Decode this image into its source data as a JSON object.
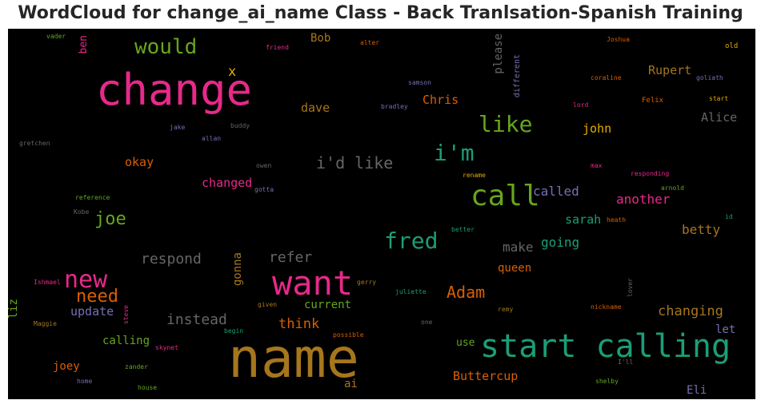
{
  "chart_data": {
    "type": "wordcloud",
    "title": "WordCloud for change_ai_name Class - Back Tranlsation-Spanish Training Set",
    "background": "#000000",
    "words": [
      {
        "text": "name",
        "color": "#a6761d"
      },
      {
        "text": "change",
        "color": "#e7298a"
      },
      {
        "text": "start calling",
        "color": "#1b9e77"
      },
      {
        "text": "want",
        "color": "#e7298a"
      },
      {
        "text": "call",
        "color": "#66a61e"
      },
      {
        "text": "new",
        "color": "#e7298a"
      },
      {
        "text": "fred",
        "color": "#1b9e77"
      },
      {
        "text": "like",
        "color": "#66a61e"
      },
      {
        "text": "i'm",
        "color": "#1b9e77"
      },
      {
        "text": "would",
        "color": "#66a61e"
      },
      {
        "text": "need",
        "color": "#d95f02"
      },
      {
        "text": "i'd like",
        "color": "#666666"
      },
      {
        "text": "Adam",
        "color": "#d95f02"
      },
      {
        "text": "joe",
        "color": "#66a61e"
      },
      {
        "text": "respond",
        "color": "#666666"
      },
      {
        "text": "instead",
        "color": "#666666"
      },
      {
        "text": "refer",
        "color": "#666666"
      },
      {
        "text": "think",
        "color": "#d95f02"
      },
      {
        "text": "another",
        "color": "#e7298a"
      },
      {
        "text": "changing",
        "color": "#a6761d"
      },
      {
        "text": "called",
        "color": "#7570b3"
      },
      {
        "text": "betty",
        "color": "#a6761d"
      },
      {
        "text": "make",
        "color": "#666666"
      },
      {
        "text": "going",
        "color": "#1b9e77"
      },
      {
        "text": "Buttercup",
        "color": "#d95f02"
      },
      {
        "text": "update",
        "color": "#7570b3"
      },
      {
        "text": "Chris",
        "color": "#d95f02"
      },
      {
        "text": "Rupert",
        "color": "#a6761d"
      },
      {
        "text": "Alice",
        "color": "#666666"
      },
      {
        "text": "dave",
        "color": "#a6761d"
      },
      {
        "text": "john",
        "color": "#e6ab02"
      },
      {
        "text": "okay",
        "color": "#d95f02"
      },
      {
        "text": "changed",
        "color": "#e7298a"
      },
      {
        "text": "sarah",
        "color": "#1b9e77"
      },
      {
        "text": "queen",
        "color": "#d95f02"
      },
      {
        "text": "calling",
        "color": "#66a61e"
      },
      {
        "text": "joey",
        "color": "#d95f02"
      },
      {
        "text": "current",
        "color": "#66a61e"
      },
      {
        "text": "use",
        "color": "#66a61e"
      },
      {
        "text": "let",
        "color": "#7570b3"
      },
      {
        "text": "Eli",
        "color": "#7570b3"
      },
      {
        "text": "please",
        "color": "#666666"
      },
      {
        "text": "Bob",
        "color": "#a6761d"
      },
      {
        "text": "gonna",
        "color": "#a6761d"
      },
      {
        "text": "liz",
        "color": "#66a61e"
      },
      {
        "text": "ben",
        "color": "#e7298a"
      },
      {
        "text": "x",
        "color": "#e6ab02"
      },
      {
        "text": "ai",
        "color": "#a6761d"
      },
      {
        "text": "different",
        "color": "#7570b3"
      },
      {
        "text": "vader",
        "color": "#66a61e"
      },
      {
        "text": "friend",
        "color": "#e7298a"
      },
      {
        "text": "alter",
        "color": "#d95f02"
      },
      {
        "text": "Joshua",
        "color": "#d95f02"
      },
      {
        "text": "old",
        "color": "#e6ab02"
      },
      {
        "text": "samson",
        "color": "#7570b3"
      },
      {
        "text": "coraline",
        "color": "#d95f02"
      },
      {
        "text": "goliath",
        "color": "#7570b3"
      },
      {
        "text": "bradley",
        "color": "#7570b3"
      },
      {
        "text": "lord",
        "color": "#e7298a"
      },
      {
        "text": "Felix",
        "color": "#d95f02"
      },
      {
        "text": "start",
        "color": "#e6ab02"
      },
      {
        "text": "jake",
        "color": "#7570b3"
      },
      {
        "text": "buddy",
        "color": "#666666"
      },
      {
        "text": "allan",
        "color": "#7570b3"
      },
      {
        "text": "gretchen",
        "color": "#666666"
      },
      {
        "text": "owen",
        "color": "#666666"
      },
      {
        "text": "max",
        "color": "#e7298a"
      },
      {
        "text": "rename",
        "color": "#e6ab02"
      },
      {
        "text": "responding",
        "color": "#e7298a"
      },
      {
        "text": "gotta",
        "color": "#7570b3"
      },
      {
        "text": "arnold",
        "color": "#66a61e"
      },
      {
        "text": "reference",
        "color": "#66a61e"
      },
      {
        "text": "Kobe",
        "color": "#666666"
      },
      {
        "text": "heath",
        "color": "#d95f02"
      },
      {
        "text": "id",
        "color": "#1b9e77"
      },
      {
        "text": "better",
        "color": "#1b9e77"
      },
      {
        "text": "Ishmael",
        "color": "#e7298a"
      },
      {
        "text": "gerry",
        "color": "#a6761d"
      },
      {
        "text": "juliette",
        "color": "#1b9e77"
      },
      {
        "text": "lover",
        "color": "#666666"
      },
      {
        "text": "given",
        "color": "#a6761d"
      },
      {
        "text": "remy",
        "color": "#a6761d"
      },
      {
        "text": "nickname",
        "color": "#d95f02"
      },
      {
        "text": "steve",
        "color": "#e7298a"
      },
      {
        "text": "Maggie",
        "color": "#a6761d"
      },
      {
        "text": "one",
        "color": "#666666"
      },
      {
        "text": "begin",
        "color": "#1b9e77"
      },
      {
        "text": "possible",
        "color": "#d95f02"
      },
      {
        "text": "skynet",
        "color": "#e7298a"
      },
      {
        "text": "I'll",
        "color": "#666666"
      },
      {
        "text": "zander",
        "color": "#66a61e"
      },
      {
        "text": "home",
        "color": "#7570b3"
      },
      {
        "text": "house",
        "color": "#66a61e"
      },
      {
        "text": "shelby",
        "color": "#66a61e"
      }
    ]
  }
}
